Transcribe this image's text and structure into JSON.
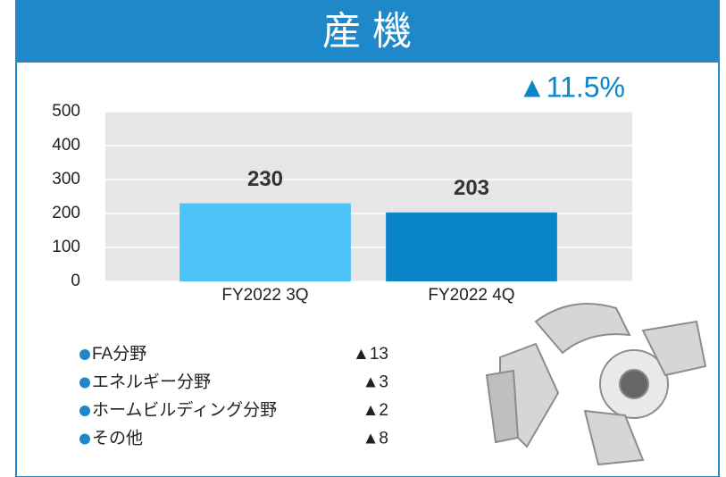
{
  "chart_data": {
    "type": "bar",
    "title": "産 機",
    "annotation": "▲11.5%",
    "categories": [
      "FY2022 3Q",
      "FY2022 4Q"
    ],
    "values": [
      230,
      203
    ],
    "colors": [
      "#4dc4f7",
      "#0a85c9"
    ],
    "ylim": [
      0,
      500
    ],
    "yticks": [
      0,
      100,
      200,
      300,
      400,
      500
    ],
    "grid": true
  },
  "breakdown": [
    {
      "label": "FA分野",
      "value": "▲13"
    },
    {
      "label": "エネルギー分野",
      "value": "▲3"
    },
    {
      "label": "ホームビルディング分野",
      "value": "▲2"
    },
    {
      "label": "その他",
      "value": "▲8"
    }
  ]
}
